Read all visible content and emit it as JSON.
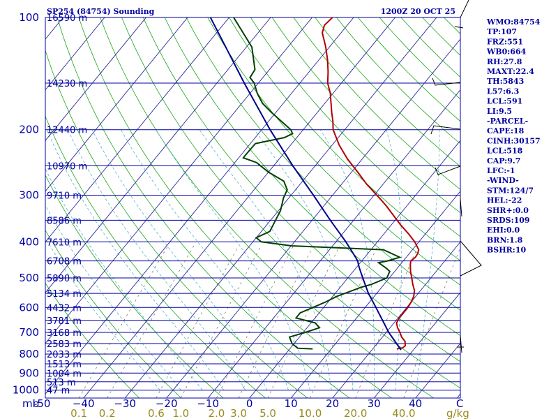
{
  "chart_data": {
    "type": "line",
    "title": "SP254 (84754) Sounding",
    "valid_time": "1200Z 20 OCT 25",
    "pressure_levels": [
      100,
      200,
      300,
      400,
      500,
      600,
      700,
      800,
      900,
      1000
    ],
    "pressure_labels": [
      "100",
      "200",
      "300",
      "400",
      "500",
      "600",
      "700",
      "800",
      "900",
      "1000"
    ],
    "pressure_unit": "mb",
    "temp_ticks": [
      -50,
      -40,
      -30,
      -20,
      -10,
      0,
      10,
      20,
      30,
      40
    ],
    "temp_tick_labels": [
      "-50",
      "−40",
      "−30",
      "−20",
      "−10",
      "0",
      "10",
      "20",
      "30",
      "40"
    ],
    "temp_unit": "C",
    "mixing_ratio_ticks": [
      0.1,
      0.2,
      0.6,
      1.0,
      2.0,
      3.0,
      5.0,
      10.0,
      20.0,
      40.0
    ],
    "mixing_ratio_labels": [
      "0.1",
      "0.2",
      "0.6",
      "1.0",
      "2.0",
      "3.0",
      "5.0",
      "10.0",
      "20.0",
      "40.0"
    ],
    "mixing_ratio_unit": "g/kg",
    "heights": [
      {
        "p": 100,
        "label": "16590 m"
      },
      {
        "p": 150,
        "label": "14230 m"
      },
      {
        "p": 200,
        "label": "12440 m"
      },
      {
        "p": 250,
        "label": "10970 m"
      },
      {
        "p": 300,
        "label": "9710 m"
      },
      {
        "p": 350,
        "label": "8586 m"
      },
      {
        "p": 400,
        "label": "7610 m"
      },
      {
        "p": 450,
        "label": "6708 m"
      },
      {
        "p": 500,
        "label": "5890 m"
      },
      {
        "p": 550,
        "label": "5134 m"
      },
      {
        "p": 600,
        "label": "4432 m"
      },
      {
        "p": 650,
        "label": "3781 m"
      },
      {
        "p": 700,
        "label": "3168 m"
      },
      {
        "p": 750,
        "label": "2583 m"
      },
      {
        "p": 800,
        "label": "2033 m"
      },
      {
        "p": 850,
        "label": "1513 m"
      },
      {
        "p": 900,
        "label": "1004 m"
      },
      {
        "p": 950,
        "label": "513 m"
      },
      {
        "p": 1000,
        "label": "47 m"
      }
    ],
    "series": [
      {
        "color": "#b00000",
        "points": [
          [
            775,
            25.8
          ],
          [
            770,
            27.0
          ],
          [
            760,
            27.2
          ],
          [
            740,
            26.3
          ],
          [
            720,
            24.6
          ],
          [
            700,
            23.3
          ],
          [
            680,
            21.8
          ],
          [
            660,
            20.6
          ],
          [
            640,
            20.3
          ],
          [
            620,
            20.3
          ],
          [
            600,
            20.3
          ],
          [
            580,
            20.0
          ],
          [
            560,
            19.5
          ],
          [
            540,
            18.5
          ],
          [
            520,
            16.9
          ],
          [
            500,
            15.4
          ],
          [
            480,
            13.8
          ],
          [
            460,
            12.4
          ],
          [
            450,
            11.8
          ],
          [
            440,
            12.2
          ],
          [
            430,
            12.0
          ],
          [
            420,
            11.5
          ],
          [
            400,
            9.0
          ],
          [
            380,
            5.8
          ],
          [
            360,
            2.2
          ],
          [
            340,
            -1.3
          ],
          [
            320,
            -5.0
          ],
          [
            300,
            -9.3
          ],
          [
            280,
            -14.0
          ],
          [
            260,
            -18.5
          ],
          [
            240,
            -23.5
          ],
          [
            220,
            -28.3
          ],
          [
            200,
            -32.8
          ],
          [
            190,
            -34.5
          ],
          [
            180,
            -36.5
          ],
          [
            170,
            -38.5
          ],
          [
            160,
            -40.6
          ],
          [
            150,
            -43.3
          ],
          [
            140,
            -45.4
          ],
          [
            130,
            -47.9
          ],
          [
            120,
            -50.9
          ],
          [
            110,
            -54.5
          ],
          [
            105,
            -55.5
          ],
          [
            100,
            -55.1
          ],
          [
            97,
            -54.0
          ]
        ]
      },
      {
        "color": "#004000",
        "points": [
          [
            775,
            5.5
          ],
          [
            772,
            1.8
          ],
          [
            750,
            -0.5
          ],
          [
            720,
            -2.4
          ],
          [
            700,
            0.5
          ],
          [
            680,
            3.0
          ],
          [
            660,
            1.0
          ],
          [
            640,
            -4.6
          ],
          [
            620,
            -4.6
          ],
          [
            600,
            -2.6
          ],
          [
            580,
            -0.6
          ],
          [
            560,
            1.0
          ],
          [
            530,
            5.0
          ],
          [
            520,
            7.0
          ],
          [
            500,
            9.4
          ],
          [
            480,
            8.8
          ],
          [
            470,
            7.2
          ],
          [
            455,
            4.4
          ],
          [
            450,
            6.2
          ],
          [
            440,
            8.4
          ],
          [
            420,
            3.0
          ],
          [
            410,
            -20.0
          ],
          [
            400,
            -28.0
          ],
          [
            390,
            -30.0
          ],
          [
            375,
            -28.0
          ],
          [
            330,
            -29.5
          ],
          [
            305,
            -31.3
          ],
          [
            290,
            -32.0
          ],
          [
            275,
            -34.5
          ],
          [
            260,
            -40.0
          ],
          [
            245,
            -44.8
          ],
          [
            238,
            -48.9
          ],
          [
            232,
            -48.9
          ],
          [
            218,
            -48.8
          ],
          [
            210,
            -43.0
          ],
          [
            205,
            -41.8
          ],
          [
            200,
            -43.0
          ],
          [
            180,
            -51.0
          ],
          [
            170,
            -55.0
          ],
          [
            160,
            -58.2
          ],
          [
            150,
            -61.0
          ],
          [
            145,
            -63.1
          ],
          [
            138,
            -63.5
          ],
          [
            120,
            -68.7
          ],
          [
            100,
            -78.9
          ],
          [
            96,
            -79.3
          ]
        ]
      },
      {
        "color": "#00008a",
        "points": [
          [
            780,
            27.0
          ],
          [
            700,
            20.6
          ],
          [
            600,
            12.6
          ],
          [
            550,
            8.0
          ],
          [
            500,
            3.6
          ],
          [
            470,
            0.8
          ],
          [
            460,
            -0.1
          ],
          [
            450,
            -1.0
          ],
          [
            430,
            -3.5
          ],
          [
            400,
            -7.6
          ],
          [
            350,
            -15.6
          ],
          [
            300,
            -24.6
          ],
          [
            250,
            -35.4
          ],
          [
            200,
            -48.0
          ],
          [
            150,
            -63.4
          ],
          [
            120,
            -75.0
          ],
          [
            100,
            -84.5
          ]
        ]
      }
    ],
    "grid": true,
    "legend": "none"
  },
  "side_panel": {
    "items": [
      "WMO:84754",
      "TP:107",
      "FRZ:551",
      "WB0:664",
      "RH:27.8",
      "MAXT:22.4",
      "TH:5843",
      "L57:6.3",
      "LCL:591",
      "LI:9.5",
      "-PARCEL-",
      "CAPE:18",
      "CINH:30157",
      "LCL:518",
      "CAP:9.7",
      "LFC:-1",
      "-WIND-",
      "STM:124/7",
      "HEL:-22",
      "SHR+:0.0",
      "SRDS:109",
      "EHI:0.0",
      "BRN:1.8",
      "BSHR:10"
    ]
  }
}
